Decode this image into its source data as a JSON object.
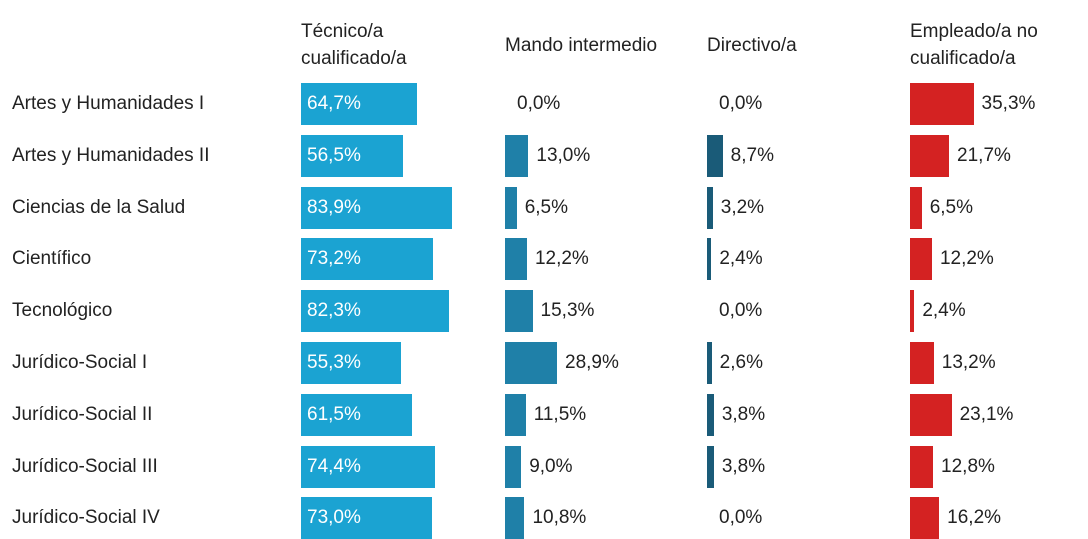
{
  "chart_data": {
    "type": "bar",
    "categories": [
      "Artes y Humanidades I",
      "Artes y Humanidades II",
      "Ciencias de la Salud",
      "Científico",
      "Tecnológico",
      "Jurídico-Social I",
      "Jurídico-Social II",
      "Jurídico-Social III",
      "Jurídico-Social IV"
    ],
    "ylim": [
      0,
      100
    ],
    "series": [
      {
        "name": "Técnico/a cualificado/a",
        "color": "#1ba3d2",
        "values": [
          64.7,
          56.5,
          83.9,
          73.2,
          82.3,
          55.3,
          61.5,
          74.4,
          73.0
        ],
        "value_labels": [
          "64,7%",
          "56,5%",
          "83,9%",
          "73,2%",
          "82,3%",
          "55,3%",
          "61,5%",
          "74,4%",
          "73,0%"
        ]
      },
      {
        "name": "Mando intermedio",
        "color": "#1f80a8",
        "values": [
          0.0,
          13.0,
          6.5,
          12.2,
          15.3,
          28.9,
          11.5,
          9.0,
          10.8
        ],
        "value_labels": [
          "0,0%",
          "13,0%",
          "6,5%",
          "12,2%",
          "15,3%",
          "28,9%",
          "11,5%",
          "9,0%",
          "10,8%"
        ]
      },
      {
        "name": "Directivo/a",
        "color": "#1a5b78",
        "values": [
          0.0,
          8.7,
          3.2,
          2.4,
          0.0,
          2.6,
          3.8,
          3.8,
          0.0
        ],
        "value_labels": [
          "0,0%",
          "8,7%",
          "3,2%",
          "2,4%",
          "0,0%",
          "2,6%",
          "3,8%",
          "3,8%",
          "0,0%"
        ]
      },
      {
        "name": "Empleado/a no cualificado/a",
        "color": "#d42222",
        "values": [
          35.3,
          21.7,
          6.5,
          12.2,
          2.4,
          13.2,
          23.1,
          12.8,
          16.2
        ],
        "value_labels": [
          "35,3%",
          "21,7%",
          "6,5%",
          "12,2%",
          "2,4%",
          "13,2%",
          "23,1%",
          "12,8%",
          "16,2%"
        ]
      }
    ]
  }
}
